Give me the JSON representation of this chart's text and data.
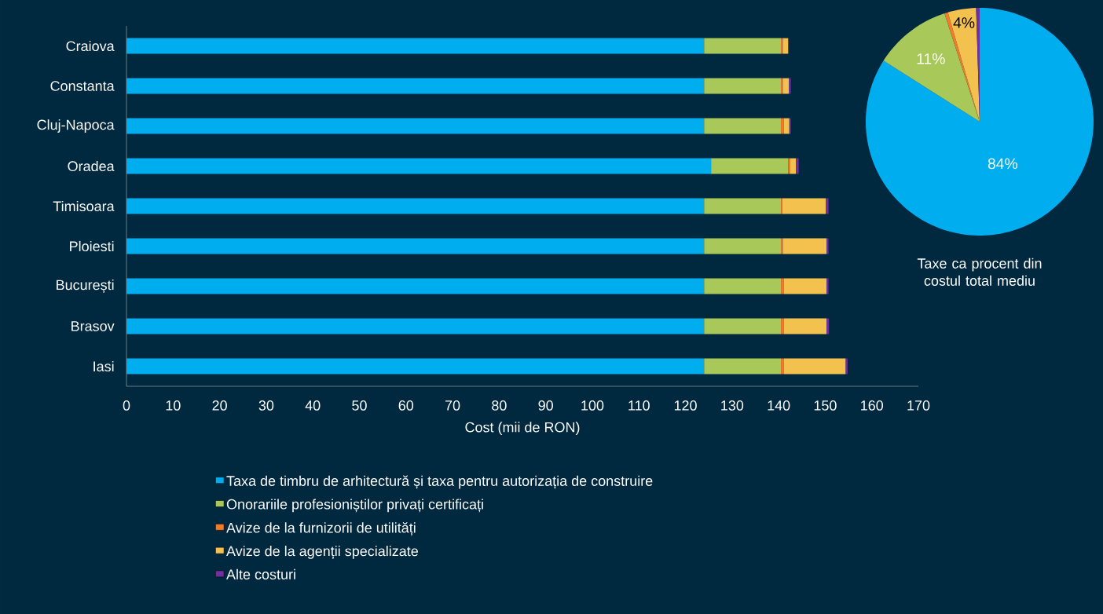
{
  "chart_data": [
    {
      "type": "bar",
      "orientation": "horizontal",
      "stacked": true,
      "xlabel": "Cost (mii de RON)",
      "categories": [
        "Craiova",
        "Constanta",
        "Cluj-Napoca",
        "Oradea",
        "Timisoara",
        "Ploiesti",
        "București",
        "Brasov",
        "Iasi"
      ],
      "series": [
        {
          "name": "Taxa de timbru de arhitectură și taxa pentru autorizația de construire",
          "color": "#00aeef",
          "values": [
            124,
            124,
            124,
            125.5,
            124,
            124,
            124,
            124,
            124
          ]
        },
        {
          "name": "Onorariile profesioniștilor privați certificați",
          "color": "#a8c859",
          "values": [
            16.5,
            16.5,
            16.5,
            16.6,
            16.5,
            16.5,
            16.5,
            16.5,
            16.5
          ]
        },
        {
          "name": "Avize de la furnizorii de utilități",
          "color": "#f07c2a",
          "values": [
            0.4,
            0.4,
            0.6,
            0.4,
            0.3,
            0.4,
            0.6,
            0.6,
            0.6
          ]
        },
        {
          "name": "Avize de la agenții specializate",
          "color": "#f2c14e",
          "values": [
            1.1,
            1.3,
            1.2,
            1.2,
            9.3,
            9.4,
            9.2,
            9.2,
            13.3
          ]
        },
        {
          "name": "Alte costuri",
          "color": "#7030a0",
          "values": [
            0.2,
            0.4,
            0.3,
            0.6,
            0.6,
            0.4,
            0.4,
            0.5,
            0.4
          ]
        }
      ],
      "xlim": [
        0,
        170
      ],
      "xticks": [
        0,
        10,
        20,
        30,
        40,
        50,
        60,
        70,
        80,
        90,
        100,
        110,
        120,
        130,
        140,
        150,
        160,
        170
      ],
      "legend": "bottom"
    },
    {
      "type": "pie",
      "title": "Taxe ca procent din costul total mediu",
      "categories": [
        null,
        null,
        null,
        null,
        null
      ],
      "values": [
        84,
        11,
        0.5,
        4,
        0.5
      ],
      "colors": [
        "#00aeef",
        "#a8c859",
        "#f07c2a",
        "#f2c14e",
        "#7030a0"
      ],
      "value_labels": [
        "84%",
        "11%",
        null,
        "4%",
        null
      ]
    }
  ]
}
